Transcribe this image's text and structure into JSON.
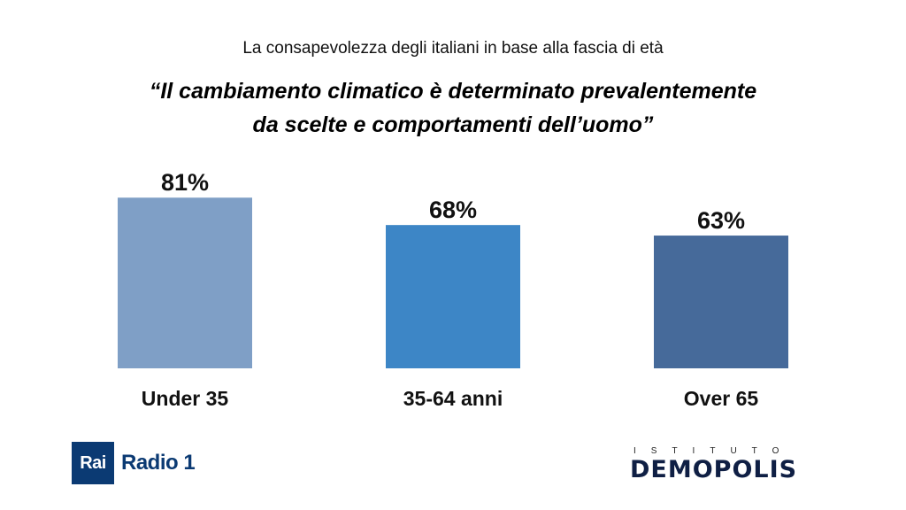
{
  "header": {
    "subtitle": "La consapevolezza degli italiani in base alla fascia di età",
    "quote_line1": "“Il cambiamento climatico è determinato prevalentemente",
    "quote_line2": "da scelte e comportamenti dell’uomo”"
  },
  "chart_data": {
    "type": "bar",
    "categories": [
      "Under 35",
      "35-64 anni",
      "Over 65"
    ],
    "values": [
      81,
      68,
      63
    ],
    "value_labels": [
      "81%",
      "68%",
      "63%"
    ],
    "colors": [
      "#7f9fc6",
      "#3d86c6",
      "#466a9a"
    ],
    "ylim": [
      0,
      100
    ],
    "grid": false
  },
  "logos": {
    "rai": "Rai",
    "radio": "Radio 1",
    "istituto": "ISTITUTO",
    "demopolis": "DEMOPOLIS"
  }
}
